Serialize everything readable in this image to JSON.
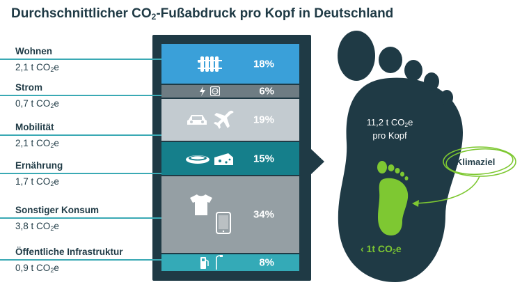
{
  "title": {
    "prefix": "Durchschnittlicher CO",
    "sub": "2",
    "suffix": "-Fußabdruck pro Kopf in Deutschland"
  },
  "unit": {
    "prefix": "t CO",
    "sub": "2",
    "suffix": "e"
  },
  "categories": [
    {
      "name": "Wohnen",
      "value": "2,1",
      "percent": "18%",
      "color": "#3aa0d9"
    },
    {
      "name": "Strom",
      "value": "0,7",
      "percent": "6%",
      "color": "#6e7c83"
    },
    {
      "name": "Mobilität",
      "value": "2,1",
      "percent": "19%",
      "color": "#c3cbd0"
    },
    {
      "name": "Ernährung",
      "value": "1,7",
      "percent": "15%",
      "color": "#157f8b"
    },
    {
      "name": "Sonstiger Konsum",
      "value": "3,8",
      "percent": "34%",
      "color": "#959fa4"
    },
    {
      "name": "Öffentliche Infrastruktur",
      "value": "0,9",
      "percent": "8%",
      "color": "#34aab7"
    }
  ],
  "footprint": {
    "total_line1_prefix": "11,2 t CO",
    "total_line1_sub": "2",
    "total_line1_suffix": "e",
    "total_line2": "pro Kopf",
    "goal_prefix": "‹ 1t CO",
    "goal_sub": "2",
    "goal_suffix": "e",
    "klimaziel": "Klimaziel"
  },
  "colors": {
    "dark": "#1f3a45",
    "accent": "#3aa9b4",
    "green": "#7ec832"
  },
  "icons": [
    "radiator-icon",
    "lightning-icon",
    "socket-icon",
    "car-icon",
    "airplane-icon",
    "food-icon",
    "cheese-icon",
    "tshirt-icon",
    "smartphone-icon",
    "fuel-pump-icon",
    "streetlight-icon",
    "footprint-icon"
  ],
  "chart_data": {
    "type": "bar",
    "title": "Durchschnittlicher CO2-Fußabdruck pro Kopf in Deutschland",
    "categories": [
      "Wohnen",
      "Strom",
      "Mobilität",
      "Ernährung",
      "Sonstiger Konsum",
      "Öffentliche Infrastruktur"
    ],
    "values": [
      2.1,
      0.7,
      2.1,
      1.7,
      3.8,
      0.9
    ],
    "percentages": [
      18,
      6,
      19,
      15,
      34,
      8
    ],
    "total": 11.2
  }
}
